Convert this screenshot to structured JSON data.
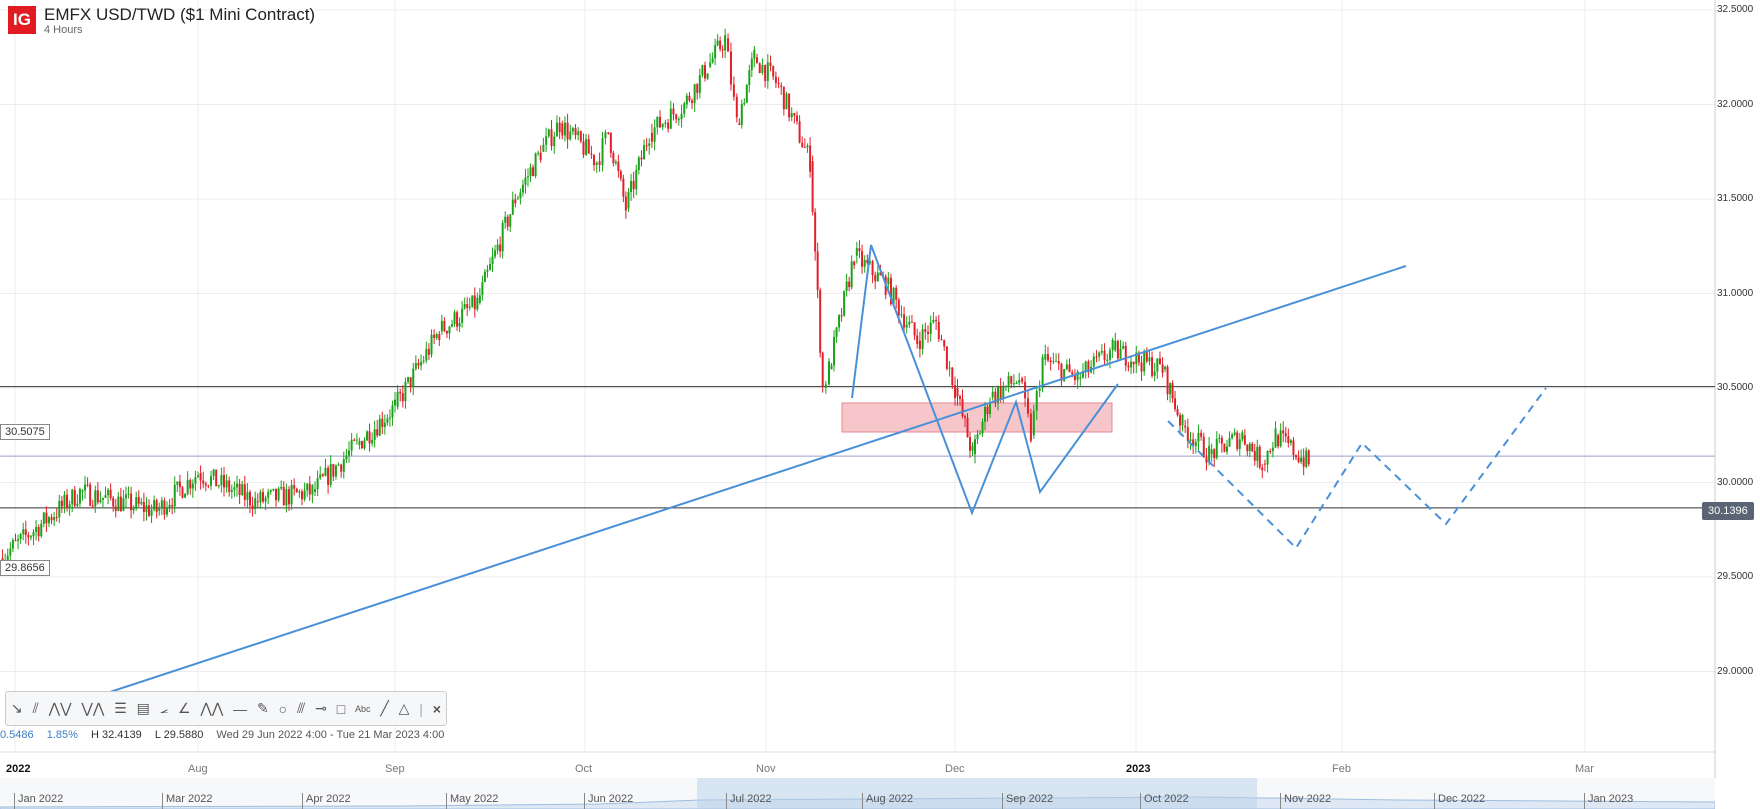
{
  "header": {
    "logo": "IG",
    "title": "EMFX USD/TWD ($1 Mini Contract)",
    "interval": "4 Hours"
  },
  "price_labels": {
    "level_1": "30.5075",
    "level_2": "29.8656",
    "current": "30.1396"
  },
  "stats": {
    "change": "0.5486",
    "change_pct": "1.85%",
    "high": "H 32.4139",
    "low": "L 29.5880",
    "range": "Wed 29 Jun 2022 4:00 - Tue 21 Mar 2023 4:00"
  },
  "toolbar": {
    "tools": [
      "trend-arrow",
      "parallel-channel",
      "zigzag",
      "pattern",
      "fibonacci-retracement",
      "fibonacci-fan",
      "gann-fan",
      "angle",
      "elliott-wave",
      "horizontal-line",
      "ruler",
      "circle",
      "pitchfork",
      "path",
      "rectangle",
      "text",
      "line",
      "triangle"
    ],
    "close": "×"
  },
  "navigator": {
    "labels": [
      "Jan 2022",
      "Mar 2022",
      "Apr 2022",
      "May 2022",
      "Jun 2022",
      "Jul 2022",
      "Aug 2022",
      "Sep 2022",
      "Oct 2022",
      "Nov 2022",
      "Dec 2022",
      "Jan 2023"
    ]
  },
  "colors": {
    "up": "#1aa31a",
    "down": "#e0202a",
    "drawing": "#4a90d9",
    "zone": "#f7c6ca"
  },
  "chart_data": {
    "type": "candlestick",
    "title": "EMFX USD/TWD ($1 Mini Contract)",
    "yaxis": {
      "ticks": [
        "32.5000",
        "32.0000",
        "31.5000",
        "31.0000",
        "30.5000",
        "30.0000",
        "29.5000",
        "29.0000"
      ],
      "range": [
        29.0,
        32.5
      ],
      "side": "right"
    },
    "xaxis": {
      "ticks": [
        "2022",
        "Aug",
        "Sep",
        "Oct",
        "Nov",
        "Dec",
        "2023",
        "Feb",
        "Mar"
      ]
    },
    "grid": true,
    "approx_price_path": [
      [
        "2022-06-29",
        29.6
      ],
      [
        "2022-07-12",
        29.95
      ],
      [
        "2022-07-25",
        29.85
      ],
      [
        "2022-08-01",
        30.05
      ],
      [
        "2022-08-10",
        29.9
      ],
      [
        "2022-08-19",
        29.95
      ],
      [
        "2022-08-26",
        30.2
      ],
      [
        "2022-09-01",
        30.4
      ],
      [
        "2022-09-08",
        30.8
      ],
      [
        "2022-09-14",
        30.95
      ],
      [
        "2022-09-20",
        31.5
      ],
      [
        "2022-09-24",
        31.75
      ],
      [
        "2022-09-27",
        31.9
      ],
      [
        "2022-10-03",
        31.7
      ],
      [
        "2022-10-05",
        31.85
      ],
      [
        "2022-10-08",
        31.45
      ],
      [
        "2022-10-12",
        31.85
      ],
      [
        "2022-10-18",
        32.0
      ],
      [
        "2022-10-22",
        32.2
      ],
      [
        "2022-10-25",
        32.35
      ],
      [
        "2022-10-27",
        31.9
      ],
      [
        "2022-10-30",
        32.25
      ],
      [
        "2022-11-03",
        32.1
      ],
      [
        "2022-11-08",
        31.7
      ],
      [
        "2022-11-10",
        30.5
      ],
      [
        "2022-11-11",
        30.6
      ],
      [
        "2022-11-15",
        31.2
      ],
      [
        "2022-11-20",
        31.05
      ],
      [
        "2022-11-25",
        30.75
      ],
      [
        "2022-11-28",
        30.85
      ],
      [
        "2022-12-01",
        30.5
      ],
      [
        "2022-12-04",
        30.15
      ],
      [
        "2022-12-07",
        30.45
      ],
      [
        "2022-12-12",
        30.55
      ],
      [
        "2022-12-14",
        30.25
      ],
      [
        "2022-12-16",
        30.65
      ],
      [
        "2022-12-22",
        30.55
      ],
      [
        "2022-12-28",
        30.7
      ],
      [
        "2023-01-05",
        30.6
      ],
      [
        "2023-01-08",
        30.3
      ],
      [
        "2023-01-12",
        30.15
      ],
      [
        "2023-01-17",
        30.25
      ],
      [
        "2023-01-20",
        30.1
      ],
      [
        "2023-01-22",
        30.25
      ],
      [
        "2023-01-27",
        30.1
      ]
    ],
    "horizontal_levels": [
      30.5075,
      29.8656,
      30.1396
    ]
  }
}
